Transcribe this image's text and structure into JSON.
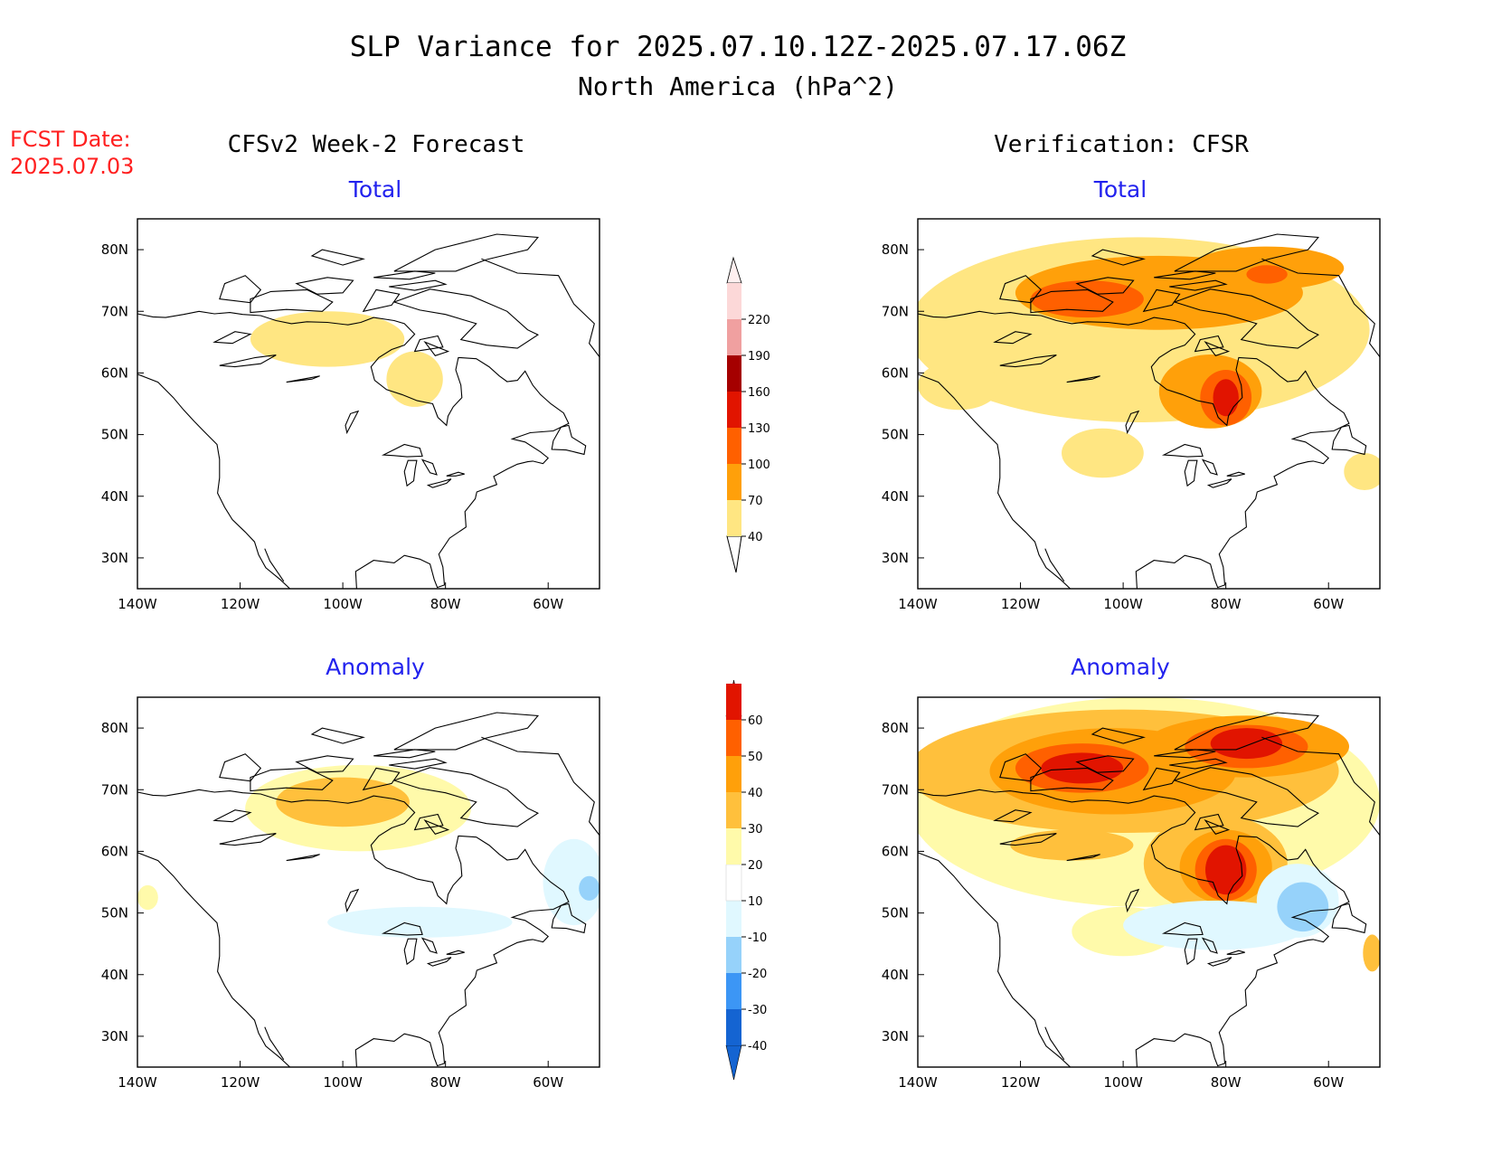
{
  "title": "SLP Variance for 2025.07.10.12Z-2025.07.17.06Z",
  "subtitle": "North America (hPa^2)",
  "fcst_date": {
    "label": "FCST Date:",
    "value": "2025.07.03"
  },
  "columns": {
    "left": "CFSv2 Week-2 Forecast",
    "right": "Verification: CFSR"
  },
  "panels": [
    {
      "id": "fcst-total",
      "title": "Total",
      "scale": "total",
      "blobs": [
        {
          "cx": -103,
          "cy": 65.5,
          "rx": 15,
          "ry": 4.5,
          "level": 40
        },
        {
          "cx": -86,
          "cy": 59,
          "rx": 5.5,
          "ry": 4.5,
          "level": 40
        }
      ]
    },
    {
      "id": "verif-total",
      "title": "Total",
      "scale": "total",
      "blobs": [
        {
          "cx": -97,
          "cy": 67,
          "rx": 45,
          "ry": 15,
          "level": 40
        },
        {
          "cx": -132,
          "cy": 58,
          "rx": 8,
          "ry": 4,
          "level": 40
        },
        {
          "cx": -104,
          "cy": 47,
          "rx": 8,
          "ry": 4,
          "level": 40
        },
        {
          "cx": -53,
          "cy": 44,
          "rx": 4,
          "ry": 3,
          "level": 40
        },
        {
          "cx": -93,
          "cy": 73,
          "rx": 28,
          "ry": 6,
          "level": 70
        },
        {
          "cx": -72,
          "cy": 77,
          "rx": 15,
          "ry": 3.5,
          "level": 70
        },
        {
          "cx": -83,
          "cy": 57,
          "rx": 10,
          "ry": 6,
          "level": 70
        },
        {
          "cx": -107,
          "cy": 72,
          "rx": 11,
          "ry": 3,
          "level": 100
        },
        {
          "cx": -80,
          "cy": 56,
          "rx": 5,
          "ry": 4.5,
          "level": 100
        },
        {
          "cx": -72,
          "cy": 76,
          "rx": 4,
          "ry": 1.5,
          "level": 100
        },
        {
          "cx": -80,
          "cy": 56,
          "rx": 2.5,
          "ry": 3,
          "level": 130
        }
      ]
    },
    {
      "id": "fcst-anom",
      "title": "Anomaly",
      "scale": "anomaly",
      "blobs": [
        {
          "cx": -97,
          "cy": 67,
          "rx": 22,
          "ry": 7,
          "level": 10
        },
        {
          "cx": -138,
          "cy": 52.5,
          "rx": 2,
          "ry": 2,
          "level": 10
        },
        {
          "cx": -100,
          "cy": 68,
          "rx": 13,
          "ry": 4,
          "level": 20
        },
        {
          "cx": -85,
          "cy": 48.5,
          "rx": 18,
          "ry": 2.5,
          "level": -10
        },
        {
          "cx": -55,
          "cy": 55,
          "rx": 6,
          "ry": 7,
          "level": -10
        },
        {
          "cx": -52,
          "cy": 54,
          "rx": 2,
          "ry": 2,
          "level": -20
        }
      ]
    },
    {
      "id": "verif-anom",
      "title": "Anomaly",
      "scale": "anomaly",
      "blobs": [
        {
          "cx": -96,
          "cy": 68,
          "rx": 46,
          "ry": 17,
          "level": 10
        },
        {
          "cx": -100,
          "cy": 47,
          "rx": 10,
          "ry": 4,
          "level": 10
        },
        {
          "cx": -100,
          "cy": 73,
          "rx": 42,
          "ry": 10,
          "level": 20
        },
        {
          "cx": -82,
          "cy": 58,
          "rx": 14,
          "ry": 8,
          "level": 20
        },
        {
          "cx": -110,
          "cy": 61,
          "rx": 12,
          "ry": 2.5,
          "level": 20
        },
        {
          "cx": -102,
          "cy": 73,
          "rx": 24,
          "ry": 7,
          "level": 30
        },
        {
          "cx": -76,
          "cy": 77,
          "rx": 20,
          "ry": 5,
          "level": 30
        },
        {
          "cx": -80,
          "cy": 57.5,
          "rx": 9,
          "ry": 6,
          "level": 30
        },
        {
          "cx": -108,
          "cy": 73.5,
          "rx": 13,
          "ry": 4,
          "level": 40
        },
        {
          "cx": -76,
          "cy": 77,
          "rx": 12,
          "ry": 3.5,
          "level": 40
        },
        {
          "cx": -80,
          "cy": 57,
          "rx": 6,
          "ry": 5,
          "level": 40
        },
        {
          "cx": -108,
          "cy": 73.5,
          "rx": 8,
          "ry": 2.5,
          "level": 50
        },
        {
          "cx": -76,
          "cy": 77.5,
          "rx": 7,
          "ry": 2.5,
          "level": 50
        },
        {
          "cx": -80,
          "cy": 57,
          "rx": 4,
          "ry": 4,
          "level": 50
        },
        {
          "cx": -82,
          "cy": 48,
          "rx": 18,
          "ry": 4,
          "level": -10
        },
        {
          "cx": -66,
          "cy": 52,
          "rx": 8,
          "ry": 6,
          "level": -10
        },
        {
          "cx": -65,
          "cy": 51,
          "rx": 5,
          "ry": 4,
          "level": -20
        },
        {
          "cx": -51.5,
          "cy": 43.5,
          "rx": 1.8,
          "ry": 3,
          "level": 20
        }
      ]
    }
  ],
  "axes": {
    "lon_ticks": [
      -140,
      -120,
      -100,
      -80,
      -60
    ],
    "lon_labels": [
      "140W",
      "120W",
      "100W",
      "80W",
      "60W"
    ],
    "lat_ticks": [
      30,
      40,
      50,
      60,
      70,
      80
    ],
    "lat_labels": [
      "30N",
      "40N",
      "50N",
      "60N",
      "70N",
      "80N"
    ],
    "lon_range": [
      -140,
      -50
    ],
    "lat_range": [
      25,
      85
    ]
  },
  "colorbars": {
    "total": {
      "labels": [
        "40",
        "70",
        "100",
        "130",
        "160",
        "190",
        "220"
      ],
      "levels": [
        40,
        70,
        100,
        130,
        160,
        190,
        220
      ],
      "colors": [
        "#ffe682",
        "#ffa00a",
        "#ff6000",
        "#e11400",
        "#a50000",
        "#f0a0a0",
        "#fcd8d8"
      ],
      "tip_high": "#fff0f0"
    },
    "anomaly": {
      "labels": [
        "-40",
        "-30",
        "-20",
        "-10",
        "10",
        "20",
        "30",
        "40",
        "50",
        "60"
      ],
      "levels": [
        -40,
        -30,
        -20,
        -10,
        10,
        20,
        30,
        40,
        50,
        60
      ],
      "neg_colors": [
        "#1464d2",
        "#3c96f5",
        "#96d2fa",
        "#e0f8ff"
      ],
      "pos_colors": [
        "#fffaaa",
        "#ffc03c",
        "#ffa00a",
        "#ff6000",
        "#e11400",
        "#a50000"
      ],
      "zero_color": "#ffffff"
    }
  }
}
